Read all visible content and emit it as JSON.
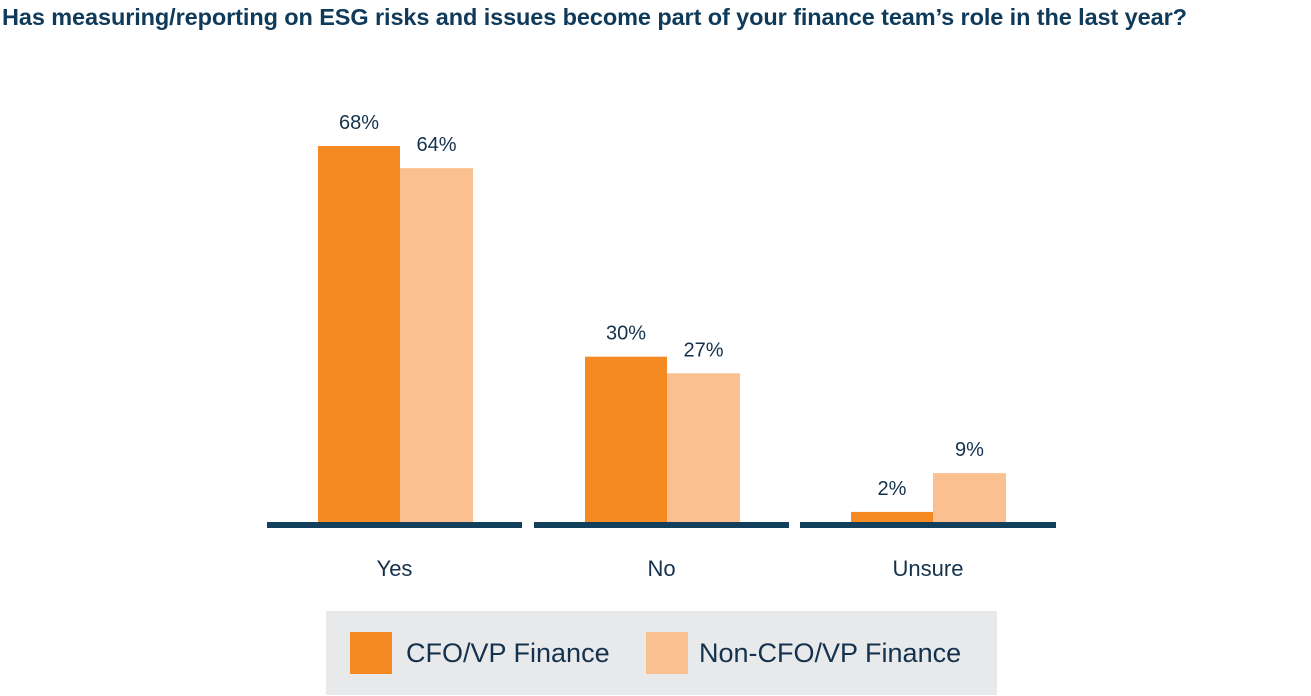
{
  "chart_data": {
    "type": "bar",
    "title": "Has measuring/reporting on ESG risks and issues become part of your finance team’s role in the last year?",
    "categories": [
      "Yes",
      "No",
      "Unsure"
    ],
    "series": [
      {
        "name": "CFO/VP Finance",
        "values": [
          68,
          30,
          2
        ],
        "labels": [
          "68%",
          "30%",
          "2%"
        ],
        "color": "#f48a21"
      },
      {
        "name": "Non-CFO/VP Finance",
        "values": [
          64,
          27,
          9
        ],
        "labels": [
          "64%",
          "27%",
          "9%"
        ],
        "color": "#fbc08f"
      }
    ],
    "unit": "%",
    "ylim": [
      0,
      70
    ],
    "grid": false,
    "legend_position": "bottom",
    "colors": {
      "title": "#0f3a5a",
      "baseline": "#123f5c",
      "text": "#14324d",
      "legend_background": "#e8e9eb"
    }
  }
}
